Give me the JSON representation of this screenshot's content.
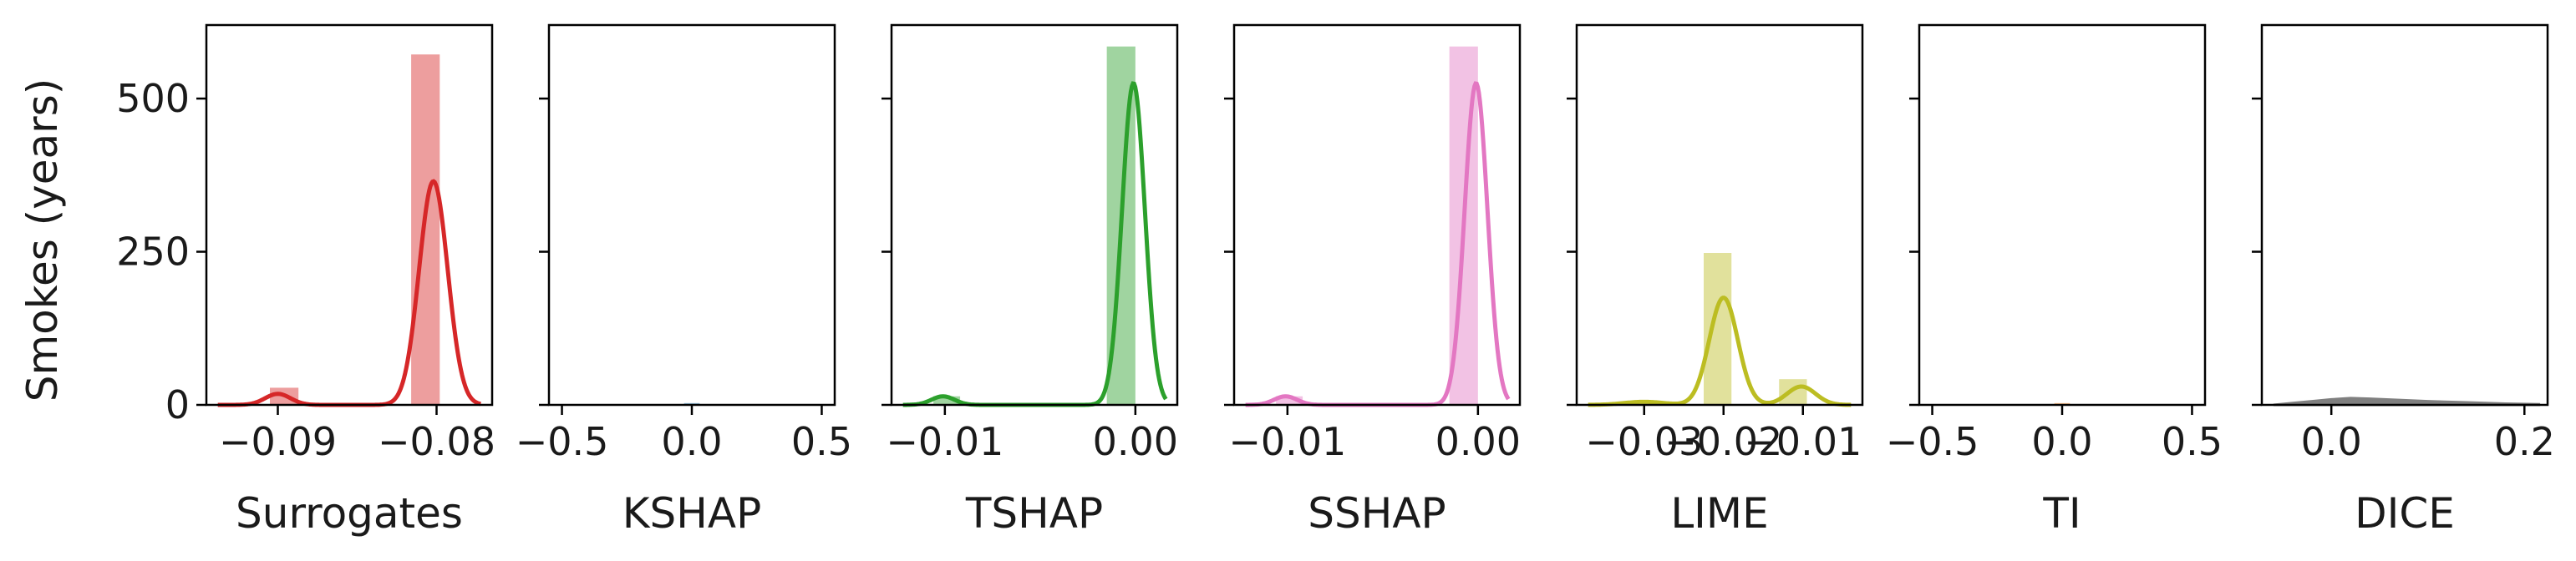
{
  "ylabel": "Smokes (years)",
  "y_ticks": [
    "0",
    "250",
    "500"
  ],
  "ylim": [
    0,
    620
  ],
  "chart_data": [
    {
      "type": "histogram+kde",
      "xlabel": "Surrogates",
      "color": "#d62728",
      "xlim": [
        -0.0945,
        -0.0765
      ],
      "x_ticks": [
        {
          "v": -0.09,
          "label": "−0.09"
        },
        {
          "v": -0.08,
          "label": "−0.08"
        }
      ],
      "bins": [
        {
          "x0": -0.0905,
          "x1": -0.0887,
          "y": 28
        },
        {
          "x0": -0.0816,
          "x1": -0.0798,
          "y": 572
        }
      ],
      "kde": [
        {
          "mu": -0.09,
          "sigma": 0.0008,
          "peak": 18
        },
        {
          "mu": -0.0802,
          "sigma": 0.0009,
          "peak": 365
        }
      ]
    },
    {
      "type": "histogram+kde",
      "xlabel": "KSHAP",
      "color": "#1f77b4",
      "xlim": [
        -0.55,
        0.55
      ],
      "x_ticks": [
        {
          "v": -0.5,
          "label": "−0.5"
        },
        {
          "v": 0.0,
          "label": "0.0"
        },
        {
          "v": 0.5,
          "label": "0.5"
        }
      ],
      "bins": [
        {
          "x0": -0.03,
          "x1": 0.03,
          "y": 3
        }
      ],
      "kde": []
    },
    {
      "type": "histogram+kde",
      "xlabel": "TSHAP",
      "color": "#2ca02c",
      "xlim": [
        -0.0128,
        0.0022
      ],
      "x_ticks": [
        {
          "v": -0.01,
          "label": "−0.01"
        },
        {
          "v": 0.0,
          "label": "0.00"
        }
      ],
      "bins": [
        {
          "x0": -0.0106,
          "x1": -0.0092,
          "y": 14
        },
        {
          "x0": -0.0015,
          "x1": 0.0,
          "y": 585
        }
      ],
      "kde": [
        {
          "mu": -0.0101,
          "sigma": 0.0006,
          "peak": 14
        },
        {
          "mu": -0.0001,
          "sigma": 0.0006,
          "peak": 525
        }
      ]
    },
    {
      "type": "histogram+kde",
      "xlabel": "SSHAP",
      "color": "#e377c2",
      "xlim": [
        -0.0128,
        0.0022
      ],
      "x_ticks": [
        {
          "v": -0.01,
          "label": "−0.01"
        },
        {
          "v": 0.0,
          "label": "0.00"
        }
      ],
      "bins": [
        {
          "x0": -0.0106,
          "x1": -0.0092,
          "y": 14
        },
        {
          "x0": -0.0015,
          "x1": 0.0,
          "y": 585
        }
      ],
      "kde": [
        {
          "mu": -0.0101,
          "sigma": 0.0006,
          "peak": 14
        },
        {
          "mu": -0.0001,
          "sigma": 0.0006,
          "peak": 525
        }
      ]
    },
    {
      "type": "histogram+kde",
      "xlabel": "LIME",
      "color": "#bcbd22",
      "xlim": [
        -0.0385,
        -0.0025
      ],
      "x_ticks": [
        {
          "v": -0.03,
          "label": "−0.03"
        },
        {
          "v": -0.02,
          "label": "−0.02"
        },
        {
          "v": -0.01,
          "label": "−0.01"
        }
      ],
      "bins": [
        {
          "x0": -0.0225,
          "x1": -0.019,
          "y": 248
        },
        {
          "x0": -0.013,
          "x1": -0.0095,
          "y": 42
        }
      ],
      "kde": [
        {
          "mu": -0.02,
          "sigma": 0.0018,
          "peak": 175
        },
        {
          "mu": -0.03,
          "sigma": 0.0025,
          "peak": 5
        },
        {
          "mu": -0.0102,
          "sigma": 0.0018,
          "peak": 30
        }
      ]
    },
    {
      "type": "histogram+kde",
      "xlabel": "TI",
      "color": "#ff7f0e",
      "xlim": [
        -0.55,
        0.55
      ],
      "x_ticks": [
        {
          "v": -0.5,
          "label": "−0.5"
        },
        {
          "v": 0.0,
          "label": "0.0"
        },
        {
          "v": 0.5,
          "label": "0.5"
        }
      ],
      "bins": [
        {
          "x0": -0.03,
          "x1": 0.03,
          "y": 3
        }
      ],
      "kde": []
    },
    {
      "type": "histogram+kde",
      "xlabel": "DICE",
      "color": "#7f7f7f",
      "xlim": [
        -0.072,
        0.224
      ],
      "x_ticks": [
        {
          "v": 0.0,
          "label": "0.0"
        },
        {
          "v": 0.2,
          "label": "0.2"
        }
      ],
      "bins": [],
      "kde": [],
      "band": [
        [
          -0.06,
          0
        ],
        [
          -0.04,
          3
        ],
        [
          -0.02,
          6
        ],
        [
          0.0,
          9
        ],
        [
          0.02,
          11
        ],
        [
          0.04,
          10
        ],
        [
          0.07,
          8
        ],
        [
          0.1,
          6
        ],
        [
          0.14,
          4
        ],
        [
          0.18,
          2
        ],
        [
          0.215,
          1
        ]
      ]
    }
  ]
}
